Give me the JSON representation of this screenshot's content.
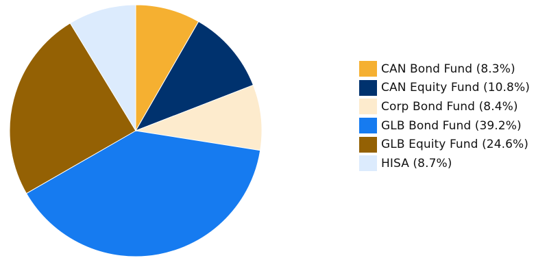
{
  "chart_data": {
    "type": "pie",
    "title": "",
    "legend_position": "right",
    "slices": [
      {
        "label": "CAN Bond Fund (8.3%)",
        "value": 8.3,
        "color": "#f5b031"
      },
      {
        "label": "CAN Equity Fund (10.8%)",
        "value": 10.8,
        "color": "#00326e"
      },
      {
        "label": "Corp Bond Fund (8.4%)",
        "value": 8.4,
        "color": "#fdebcd"
      },
      {
        "label": "GLB Bond Fund (39.2%)",
        "value": 39.2,
        "color": "#167bf0"
      },
      {
        "label": "GLB Equity Fund (24.6%)",
        "value": 24.6,
        "color": "#946104"
      },
      {
        "label": "HISA (8.7%)",
        "value": 8.7,
        "color": "#dcebfd"
      }
    ]
  }
}
